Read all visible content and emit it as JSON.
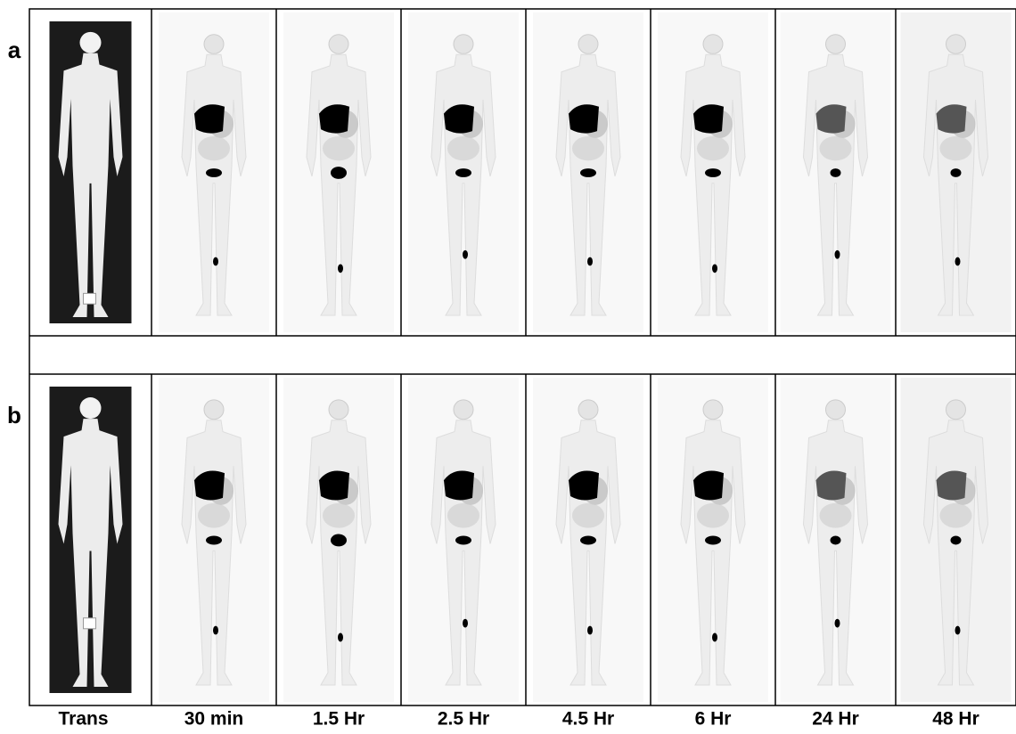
{
  "rows": [
    {
      "label": "a"
    },
    {
      "label": "b"
    }
  ],
  "columns": [
    "Trans",
    "30 min",
    "1.5 Hr",
    "2.5 Hr",
    "4.5 Hr",
    "6 Hr",
    "24 Hr",
    "48 Hr"
  ]
}
